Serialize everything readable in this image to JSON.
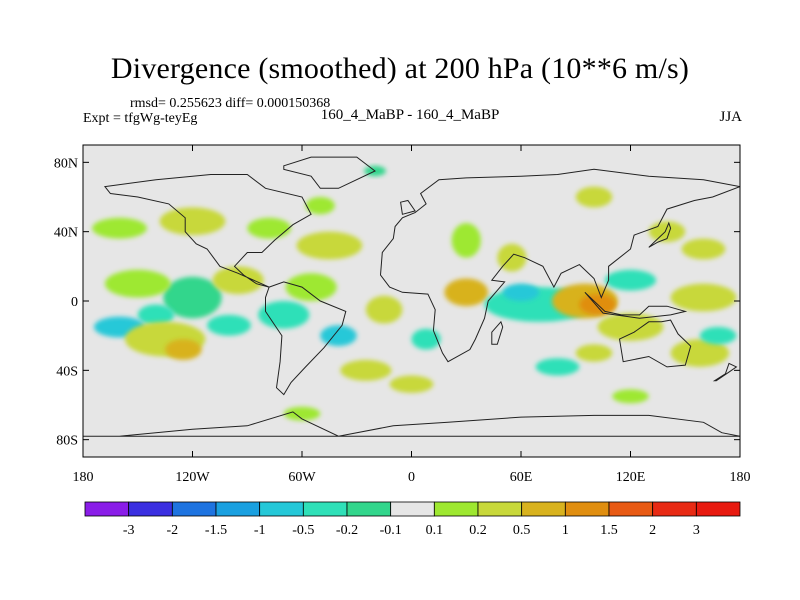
{
  "chart_data": {
    "type": "heatmap",
    "title": "Divergence (smoothed) at 200 hPa (10**6 m/s)",
    "stats_label": "rmsd= 0.255623 diff= 0.000150368",
    "experiment_label": "Expt = tfgWg-teyEg",
    "comparison_label": "160_4_MaBP - 160_4_MaBP",
    "season_label": "JJA",
    "x_range": [
      -180,
      180
    ],
    "y_range": [
      -90,
      90
    ],
    "x_ticks": [
      {
        "value": -180,
        "label": "180"
      },
      {
        "value": -120,
        "label": "120W"
      },
      {
        "value": -60,
        "label": "60W"
      },
      {
        "value": 0,
        "label": "0"
      },
      {
        "value": 60,
        "label": "60E"
      },
      {
        "value": 120,
        "label": "120E"
      },
      {
        "value": 180,
        "label": "180"
      }
    ],
    "y_ticks": [
      {
        "value": 80,
        "label": "80N"
      },
      {
        "value": 40,
        "label": "40N"
      },
      {
        "value": 0,
        "label": "0"
      },
      {
        "value": -40,
        "label": "40S"
      },
      {
        "value": -80,
        "label": "80S"
      }
    ],
    "colorbar": {
      "boundaries": [
        "-3",
        "-2",
        "-1.5",
        "-1",
        "-0.5",
        "-0.2",
        "-0.1",
        "0.1",
        "0.2",
        "0.5",
        "1",
        "1.5",
        "2",
        "3"
      ],
      "colors": [
        "#8a1de8",
        "#3b2fe0",
        "#1e73e0",
        "#1aa0e0",
        "#25c8d8",
        "#2fe0b8",
        "#32d68c",
        "#e6e6e6",
        "#9ee830",
        "#c8d83a",
        "#d8b21e",
        "#e08e10",
        "#e85a14",
        "#e82a14",
        "#e81a10"
      ]
    },
    "blobs": [
      {
        "lon": -120,
        "lat": 2,
        "rx": 16,
        "ry": 12,
        "level": 6
      },
      {
        "lon": -140,
        "lat": -8,
        "rx": 10,
        "ry": 6,
        "level": 5
      },
      {
        "lon": -100,
        "lat": -14,
        "rx": 12,
        "ry": 6,
        "level": 5
      },
      {
        "lon": -160,
        "lat": -15,
        "rx": 14,
        "ry": 6,
        "level": 4
      },
      {
        "lon": -135,
        "lat": -22,
        "rx": 22,
        "ry": 10,
        "level": 9
      },
      {
        "lon": -125,
        "lat": -28,
        "rx": 10,
        "ry": 6,
        "level": 10
      },
      {
        "lon": -150,
        "lat": 10,
        "rx": 18,
        "ry": 8,
        "level": 8
      },
      {
        "lon": -95,
        "lat": 12,
        "rx": 14,
        "ry": 8,
        "level": 9
      },
      {
        "lon": -160,
        "lat": 42,
        "rx": 15,
        "ry": 6,
        "level": 8
      },
      {
        "lon": -120,
        "lat": 46,
        "rx": 18,
        "ry": 8,
        "level": 9
      },
      {
        "lon": -78,
        "lat": 42,
        "rx": 12,
        "ry": 6,
        "level": 8
      },
      {
        "lon": -45,
        "lat": 32,
        "rx": 18,
        "ry": 8,
        "level": 9
      },
      {
        "lon": -55,
        "lat": 8,
        "rx": 14,
        "ry": 8,
        "level": 8
      },
      {
        "lon": -70,
        "lat": -8,
        "rx": 14,
        "ry": 8,
        "level": 5
      },
      {
        "lon": -40,
        "lat": -20,
        "rx": 10,
        "ry": 6,
        "level": 4
      },
      {
        "lon": -15,
        "lat": -5,
        "rx": 10,
        "ry": 8,
        "level": 9
      },
      {
        "lon": -25,
        "lat": -40,
        "rx": 14,
        "ry": 6,
        "level": 9
      },
      {
        "lon": 0,
        "lat": -48,
        "rx": 12,
        "ry": 5,
        "level": 9
      },
      {
        "lon": 8,
        "lat": -22,
        "rx": 8,
        "ry": 6,
        "level": 5
      },
      {
        "lon": 30,
        "lat": 5,
        "rx": 12,
        "ry": 8,
        "level": 10
      },
      {
        "lon": 30,
        "lat": 35,
        "rx": 8,
        "ry": 10,
        "level": 8
      },
      {
        "lon": 55,
        "lat": 25,
        "rx": 8,
        "ry": 8,
        "level": 9
      },
      {
        "lon": 70,
        "lat": -2,
        "rx": 30,
        "ry": 10,
        "level": 5
      },
      {
        "lon": 60,
        "lat": 5,
        "rx": 10,
        "ry": 5,
        "level": 4
      },
      {
        "lon": 95,
        "lat": 0,
        "rx": 18,
        "ry": 10,
        "level": 10
      },
      {
        "lon": 102,
        "lat": -2,
        "rx": 10,
        "ry": 6,
        "level": 11
      },
      {
        "lon": 120,
        "lat": -15,
        "rx": 18,
        "ry": 8,
        "level": 9
      },
      {
        "lon": 160,
        "lat": 2,
        "rx": 18,
        "ry": 8,
        "level": 9
      },
      {
        "lon": 158,
        "lat": -30,
        "rx": 16,
        "ry": 8,
        "level": 9
      },
      {
        "lon": 168,
        "lat": -20,
        "rx": 10,
        "ry": 5,
        "level": 5
      },
      {
        "lon": 120,
        "lat": 12,
        "rx": 14,
        "ry": 6,
        "level": 5
      },
      {
        "lon": 80,
        "lat": -38,
        "rx": 12,
        "ry": 5,
        "level": 5
      },
      {
        "lon": 100,
        "lat": -30,
        "rx": 10,
        "ry": 5,
        "level": 9
      },
      {
        "lon": 140,
        "lat": 40,
        "rx": 10,
        "ry": 6,
        "level": 9
      },
      {
        "lon": 160,
        "lat": 30,
        "rx": 12,
        "ry": 6,
        "level": 9
      },
      {
        "lon": -50,
        "lat": 55,
        "rx": 8,
        "ry": 5,
        "level": 8
      },
      {
        "lon": -20,
        "lat": 75,
        "rx": 6,
        "ry": 3,
        "level": 6
      },
      {
        "lon": 100,
        "lat": 60,
        "rx": 10,
        "ry": 6,
        "level": 9
      },
      {
        "lon": -60,
        "lat": -65,
        "rx": 10,
        "ry": 4,
        "level": 8
      },
      {
        "lon": 120,
        "lat": -55,
        "rx": 10,
        "ry": 4,
        "level": 8
      }
    ],
    "continents": [
      {
        "name": "north-america",
        "coords": [
          [
            -168,
            66
          ],
          [
            -140,
            70
          ],
          [
            -110,
            73
          ],
          [
            -90,
            73
          ],
          [
            -80,
            65
          ],
          [
            -60,
            60
          ],
          [
            -55,
            50
          ],
          [
            -65,
            44
          ],
          [
            -75,
            35
          ],
          [
            -82,
            28
          ],
          [
            -90,
            28
          ],
          [
            -97,
            20
          ],
          [
            -92,
            15
          ],
          [
            -85,
            10
          ],
          [
            -78,
            8
          ],
          [
            -95,
            16
          ],
          [
            -105,
            20
          ],
          [
            -112,
            30
          ],
          [
            -118,
            33
          ],
          [
            -124,
            40
          ],
          [
            -124,
            48
          ],
          [
            -133,
            56
          ],
          [
            -150,
            60
          ],
          [
            -165,
            62
          ]
        ]
      },
      {
        "name": "south-america",
        "coords": [
          [
            -78,
            8
          ],
          [
            -70,
            11
          ],
          [
            -60,
            8
          ],
          [
            -50,
            0
          ],
          [
            -36,
            -6
          ],
          [
            -38,
            -14
          ],
          [
            -48,
            -27
          ],
          [
            -58,
            -38
          ],
          [
            -66,
            -47
          ],
          [
            -70,
            -54
          ],
          [
            -74,
            -50
          ],
          [
            -72,
            -35
          ],
          [
            -71,
            -20
          ],
          [
            -80,
            -6
          ],
          [
            -80,
            2
          ]
        ]
      },
      {
        "name": "africa-eurasia",
        "coords": [
          [
            -17,
            15
          ],
          [
            -16,
            28
          ],
          [
            -10,
            36
          ],
          [
            -9,
            43
          ],
          [
            -5,
            48
          ],
          [
            2,
            51
          ],
          [
            8,
            56
          ],
          [
            5,
            62
          ],
          [
            15,
            70
          ],
          [
            30,
            71
          ],
          [
            60,
            72
          ],
          [
            80,
            73
          ],
          [
            100,
            76
          ],
          [
            130,
            72
          ],
          [
            160,
            70
          ],
          [
            180,
            66
          ],
          [
            165,
            60
          ],
          [
            155,
            58
          ],
          [
            140,
            53
          ],
          [
            135,
            43
          ],
          [
            122,
            38
          ],
          [
            120,
            30
          ],
          [
            108,
            20
          ],
          [
            108,
            12
          ],
          [
            104,
            2
          ],
          [
            100,
            13
          ],
          [
            92,
            21
          ],
          [
            82,
            16
          ],
          [
            78,
            8
          ],
          [
            72,
            20
          ],
          [
            62,
            25
          ],
          [
            56,
            27
          ],
          [
            50,
            20
          ],
          [
            44,
            12
          ],
          [
            51,
            11
          ],
          [
            42,
            0
          ],
          [
            40,
            -10
          ],
          [
            35,
            -22
          ],
          [
            32,
            -28
          ],
          [
            20,
            -35
          ],
          [
            17,
            -30
          ],
          [
            12,
            -17
          ],
          [
            13,
            -5
          ],
          [
            9,
            4
          ],
          [
            -5,
            5
          ],
          [
            -12,
            8
          ]
        ]
      },
      {
        "name": "greenland",
        "coords": [
          [
            -70,
            78
          ],
          [
            -55,
            83
          ],
          [
            -30,
            83
          ],
          [
            -20,
            75
          ],
          [
            -40,
            65
          ],
          [
            -50,
            65
          ],
          [
            -55,
            72
          ],
          [
            -70,
            76
          ]
        ]
      },
      {
        "name": "australia",
        "coords": [
          [
            114,
            -22
          ],
          [
            122,
            -18
          ],
          [
            130,
            -12
          ],
          [
            137,
            -12
          ],
          [
            142,
            -11
          ],
          [
            146,
            -19
          ],
          [
            153,
            -26
          ],
          [
            150,
            -37
          ],
          [
            140,
            -38
          ],
          [
            130,
            -32
          ],
          [
            116,
            -35
          ]
        ]
      },
      {
        "name": "antarctica",
        "coords": [
          [
            -180,
            -78
          ],
          [
            -160,
            -78
          ],
          [
            -120,
            -74
          ],
          [
            -90,
            -72
          ],
          [
            -65,
            -64
          ],
          [
            -60,
            -68
          ],
          [
            -40,
            -78
          ],
          [
            -10,
            -72
          ],
          [
            20,
            -70
          ],
          [
            60,
            -67
          ],
          [
            100,
            -66
          ],
          [
            130,
            -66
          ],
          [
            160,
            -70
          ],
          [
            170,
            -76
          ],
          [
            180,
            -78
          ]
        ]
      },
      {
        "name": "japan",
        "coords": [
          [
            130,
            31
          ],
          [
            135,
            34
          ],
          [
            140,
            36
          ],
          [
            142,
            42
          ],
          [
            141,
            45
          ],
          [
            139,
            40
          ],
          [
            133,
            34
          ]
        ]
      },
      {
        "name": "uk",
        "coords": [
          [
            -5,
            50
          ],
          [
            2,
            52
          ],
          [
            -2,
            58
          ],
          [
            -6,
            57
          ]
        ]
      },
      {
        "name": "madagascar",
        "coords": [
          [
            44,
            -25
          ],
          [
            47,
            -25
          ],
          [
            50,
            -15
          ],
          [
            49,
            -12
          ],
          [
            44,
            -18
          ]
        ]
      },
      {
        "name": "new-zealand",
        "coords": [
          [
            167,
            -46
          ],
          [
            174,
            -41
          ],
          [
            178,
            -38
          ],
          [
            174,
            -36
          ],
          [
            172,
            -42
          ],
          [
            166,
            -46
          ]
        ]
      },
      {
        "name": "indonesia",
        "coords": [
          [
            95,
            5
          ],
          [
            106,
            -6
          ],
          [
            115,
            -8
          ],
          [
            125,
            -8
          ],
          [
            130,
            -3
          ],
          [
            140,
            -3
          ],
          [
            150,
            -6
          ],
          [
            142,
            -8
          ],
          [
            125,
            -10
          ],
          [
            105,
            -7
          ]
        ]
      }
    ]
  }
}
